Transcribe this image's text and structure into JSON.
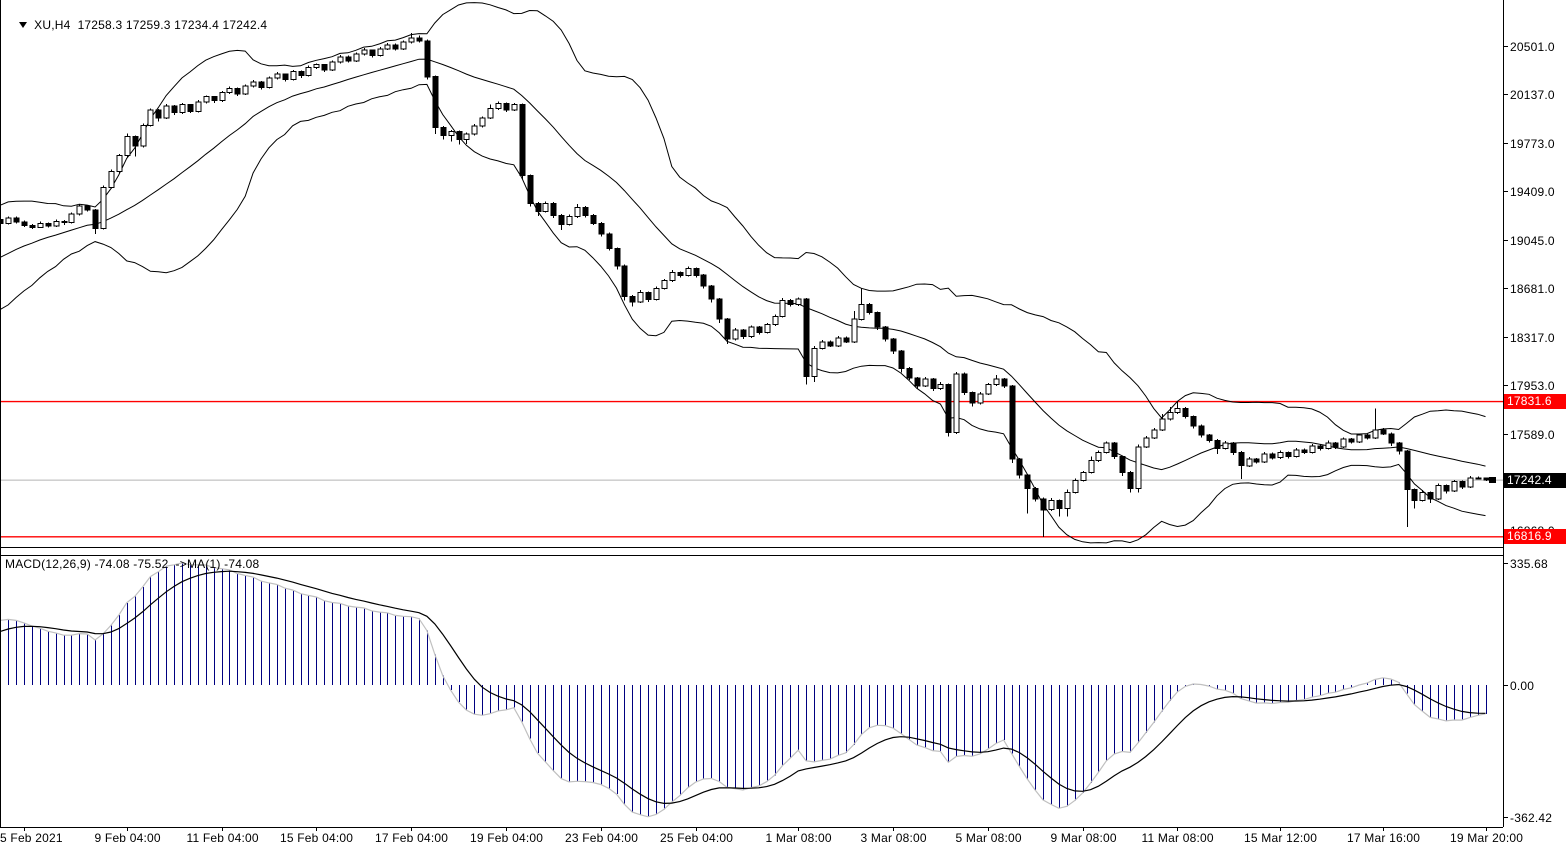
{
  "header": {
    "symbol_period": "XU,H4",
    "ohlc_text": "17258.3 17259.3 17234.4 17242.4",
    "open": 17258.3,
    "high": 17259.3,
    "low": 17234.4,
    "close": 17242.4
  },
  "macd_panel": {
    "label_text": "MACD(12,26,9) -74.08 -75.52  ->MA(1) -74.08",
    "macd_value": -74.08,
    "signal_value": -75.52,
    "ma_value": -74.08,
    "axis_ticks": [
      335.68,
      0.0,
      -362.42
    ],
    "axis_max": 335.68,
    "axis_min": -362.42
  },
  "price_axis": {
    "ticks": [
      20501.0,
      20137.0,
      19773.0,
      19409.0,
      19045.0,
      18681.0,
      18317.0,
      17953.0,
      17589.0,
      16868.0
    ]
  },
  "time_axis": [
    {
      "label": "5 Feb 2021",
      "i": 0
    },
    {
      "label": "9 Feb 04:00",
      "i": 13
    },
    {
      "label": "11 Feb 04:00",
      "i": 25
    },
    {
      "label": "15 Feb 04:00",
      "i": 37
    },
    {
      "label": "17 Feb 04:00",
      "i": 49
    },
    {
      "label": "19 Feb 04:00",
      "i": 61
    },
    {
      "label": "23 Feb 04:00",
      "i": 73
    },
    {
      "label": "25 Feb 04:00",
      "i": 85
    },
    {
      "label": "1 Mar 08:00",
      "i": 98
    },
    {
      "label": "3 Mar 08:00",
      "i": 110
    },
    {
      "label": "5 Mar 08:00",
      "i": 122
    },
    {
      "label": "9 Mar 08:00",
      "i": 134
    },
    {
      "label": "11 Mar 08:00",
      "i": 146
    },
    {
      "label": "15 Mar 12:00",
      "i": 159
    },
    {
      "label": "17 Mar 16:00",
      "i": 172
    },
    {
      "label": "19 Mar 20:00",
      "i": 185
    }
  ],
  "levels": [
    {
      "value": 17831.6,
      "label": "17831.6",
      "color": "#ff0000"
    },
    {
      "value": 16816.9,
      "label": "16816.9",
      "color": "#ff0000"
    }
  ],
  "current_price": {
    "value": 17242.4,
    "label": "17242.4",
    "bg": "#000000"
  },
  "colors": {
    "background": "#ffffff",
    "foreground": "#000000",
    "bull_body": "#ffffff",
    "bear_body": "#000000",
    "bollinger": "#000000",
    "level_line": "#ff0000",
    "current_price_line": "#b4b4b4",
    "macd_histogram": "#000080",
    "macd_line": "#c0c0c0",
    "signal_line": "#000000"
  },
  "chart_data": {
    "type": "candlestick",
    "symbol": "XU",
    "timeframe": "H4",
    "x_range": [
      "5 Feb 2021 00:00",
      "19 Mar 2021 20:00"
    ],
    "price_range_visible": [
      16740,
      20846
    ],
    "indicators": {
      "bollinger": {
        "period": 20,
        "deviation": 2
      },
      "macd": {
        "fast": 12,
        "slow": 26,
        "signal": 9,
        "last_macd": -74.08,
        "last_signal": -75.52,
        "last_ma": -74.08
      }
    },
    "warmup_closes": [
      18600,
      18550,
      18500,
      18560,
      18620,
      18580,
      18650,
      18720,
      18690,
      18760,
      18830,
      18800,
      18870,
      18940,
      18910,
      18980,
      19050,
      19020,
      19090,
      19140,
      19110,
      19160,
      19200,
      19170,
      19210,
      19180
    ],
    "candles_format": "[close, upper_wick, lower_wick] ; open = previous close",
    "candles": [
      [
        19155,
        10,
        14
      ],
      [
        19140,
        8,
        12
      ],
      [
        19170,
        12,
        6
      ],
      [
        19150,
        6,
        10
      ],
      [
        19185,
        14,
        8
      ],
      [
        19175,
        8,
        16
      ],
      [
        19240,
        12,
        8
      ],
      [
        19300,
        15,
        10
      ],
      [
        19270,
        8,
        12
      ],
      [
        19130,
        6,
        40
      ],
      [
        19440,
        15,
        8
      ],
      [
        19560,
        12,
        10
      ],
      [
        19680,
        10,
        14
      ],
      [
        19820,
        25,
        12
      ],
      [
        19750,
        8,
        80
      ],
      [
        19905,
        14,
        10
      ],
      [
        20020,
        12,
        8
      ],
      [
        19960,
        6,
        25
      ],
      [
        20050,
        15,
        8
      ],
      [
        20000,
        8,
        18
      ],
      [
        20060,
        12,
        10
      ],
      [
        20010,
        6,
        14
      ],
      [
        20080,
        14,
        8
      ],
      [
        20120,
        10,
        12
      ],
      [
        20090,
        6,
        16
      ],
      [
        20150,
        12,
        8
      ],
      [
        20180,
        15,
        10
      ],
      [
        20140,
        8,
        14
      ],
      [
        20200,
        12,
        6
      ],
      [
        20230,
        14,
        10
      ],
      [
        20190,
        8,
        16
      ],
      [
        20260,
        12,
        8
      ],
      [
        20290,
        15,
        10
      ],
      [
        20250,
        6,
        14
      ],
      [
        20310,
        12,
        8
      ],
      [
        20280,
        8,
        18
      ],
      [
        20340,
        14,
        8
      ],
      [
        20360,
        10,
        12
      ],
      [
        20320,
        6,
        15
      ],
      [
        20380,
        12,
        8
      ],
      [
        20420,
        15,
        10
      ],
      [
        20390,
        8,
        14
      ],
      [
        20440,
        12,
        8
      ],
      [
        20470,
        14,
        10
      ],
      [
        20430,
        6,
        16
      ],
      [
        20480,
        12,
        8
      ],
      [
        20510,
        15,
        10
      ],
      [
        20480,
        8,
        14
      ],
      [
        20530,
        12,
        8
      ],
      [
        20560,
        40,
        10
      ],
      [
        20540,
        20,
        12
      ],
      [
        20270,
        10,
        20
      ],
      [
        19890,
        8,
        50
      ],
      [
        19830,
        12,
        30
      ],
      [
        19860,
        10,
        45
      ],
      [
        19800,
        8,
        40
      ],
      [
        19840,
        12,
        35
      ],
      [
        19900,
        15,
        10
      ],
      [
        19960,
        10,
        12
      ],
      [
        20030,
        30,
        8
      ],
      [
        20070,
        15,
        10
      ],
      [
        20020,
        8,
        16
      ],
      [
        20060,
        12,
        8
      ],
      [
        19530,
        10,
        30
      ],
      [
        19320,
        8,
        25
      ],
      [
        19260,
        10,
        35
      ],
      [
        19320,
        14,
        10
      ],
      [
        19230,
        8,
        20
      ],
      [
        19160,
        10,
        40
      ],
      [
        19220,
        15,
        8
      ],
      [
        19290,
        25,
        10
      ],
      [
        19230,
        8,
        18
      ],
      [
        19170,
        10,
        14
      ],
      [
        19090,
        8,
        20
      ],
      [
        18980,
        12,
        16
      ],
      [
        18850,
        8,
        25
      ],
      [
        18620,
        10,
        30
      ],
      [
        18580,
        12,
        35
      ],
      [
        18650,
        18,
        8
      ],
      [
        18600,
        8,
        20
      ],
      [
        18680,
        15,
        10
      ],
      [
        18740,
        12,
        8
      ],
      [
        18800,
        20,
        10
      ],
      [
        18780,
        8,
        16
      ],
      [
        18830,
        14,
        8
      ],
      [
        18780,
        8,
        18
      ],
      [
        18700,
        10,
        20
      ],
      [
        18600,
        8,
        25
      ],
      [
        18450,
        10,
        30
      ],
      [
        18300,
        8,
        35
      ],
      [
        18370,
        15,
        8
      ],
      [
        18320,
        8,
        20
      ],
      [
        18390,
        14,
        10
      ],
      [
        18350,
        8,
        16
      ],
      [
        18410,
        12,
        8
      ],
      [
        18470,
        15,
        10
      ],
      [
        18590,
        18,
        8
      ],
      [
        18560,
        10,
        14
      ],
      [
        18600,
        12,
        10
      ],
      [
        18020,
        10,
        60
      ],
      [
        18230,
        20,
        40
      ],
      [
        18280,
        15,
        8
      ],
      [
        18250,
        12,
        10
      ],
      [
        18310,
        15,
        8
      ],
      [
        18280,
        12,
        10
      ],
      [
        18450,
        60,
        8
      ],
      [
        18560,
        120,
        10
      ],
      [
        18500,
        10,
        16
      ],
      [
        18390,
        8,
        20
      ],
      [
        18300,
        10,
        16
      ],
      [
        18210,
        8,
        22
      ],
      [
        18080,
        10,
        30
      ],
      [
        18010,
        12,
        18
      ],
      [
        17950,
        8,
        25
      ],
      [
        18000,
        15,
        10
      ],
      [
        17930,
        8,
        20
      ],
      [
        17960,
        18,
        10
      ],
      [
        17600,
        8,
        30
      ],
      [
        18040,
        15,
        10
      ],
      [
        17900,
        10,
        20
      ],
      [
        17820,
        8,
        25
      ],
      [
        17890,
        15,
        10
      ],
      [
        17960,
        12,
        8
      ],
      [
        18000,
        30,
        10
      ],
      [
        17950,
        10,
        16
      ],
      [
        17400,
        8,
        30
      ],
      [
        17280,
        10,
        25
      ],
      [
        17180,
        8,
        190
      ],
      [
        17100,
        12,
        20
      ],
      [
        17020,
        10,
        203.1
      ],
      [
        17090,
        18,
        10
      ],
      [
        17030,
        8,
        60
      ],
      [
        17150,
        20,
        60
      ],
      [
        17240,
        15,
        8
      ],
      [
        17300,
        12,
        10
      ],
      [
        17390,
        30,
        8
      ],
      [
        17450,
        15,
        10
      ],
      [
        17520,
        12,
        8
      ],
      [
        17420,
        10,
        18
      ],
      [
        17300,
        8,
        25
      ],
      [
        17180,
        10,
        30
      ],
      [
        17490,
        20,
        30
      ],
      [
        17560,
        15,
        8
      ],
      [
        17620,
        12,
        10
      ],
      [
        17700,
        40,
        8
      ],
      [
        17750,
        40,
        10
      ],
      [
        17780,
        51.6,
        10
      ],
      [
        17720,
        10,
        16
      ],
      [
        17650,
        8,
        20
      ],
      [
        17580,
        10,
        18
      ],
      [
        17540,
        8,
        16
      ],
      [
        17480,
        12,
        40
      ],
      [
        17520,
        15,
        8
      ],
      [
        17450,
        8,
        18
      ],
      [
        17350,
        10,
        100
      ],
      [
        17400,
        15,
        8
      ],
      [
        17380,
        8,
        14
      ],
      [
        17440,
        12,
        8
      ],
      [
        17410,
        8,
        14
      ],
      [
        17450,
        14,
        8
      ],
      [
        17420,
        8,
        14
      ],
      [
        17470,
        12,
        8
      ],
      [
        17450,
        8,
        12
      ],
      [
        17500,
        14,
        8
      ],
      [
        17480,
        8,
        14
      ],
      [
        17520,
        20,
        8
      ],
      [
        17490,
        8,
        14
      ],
      [
        17550,
        14,
        8
      ],
      [
        17530,
        8,
        12
      ],
      [
        17580,
        12,
        8
      ],
      [
        17560,
        8,
        14
      ],
      [
        17620,
        160,
        8
      ],
      [
        17590,
        15,
        10
      ],
      [
        17520,
        8,
        20
      ],
      [
        17460,
        10,
        25
      ],
      [
        17170,
        8,
        280
      ],
      [
        17090,
        10,
        60
      ],
      [
        17150,
        18,
        8
      ],
      [
        17100,
        8,
        30
      ],
      [
        17200,
        15,
        8
      ],
      [
        17160,
        8,
        20
      ],
      [
        17230,
        12,
        8
      ],
      [
        17190,
        8,
        16
      ],
      [
        17260,
        14,
        8
      ],
      [
        17258.3,
        10,
        12
      ],
      [
        17242.4,
        1,
        8
      ]
    ]
  }
}
